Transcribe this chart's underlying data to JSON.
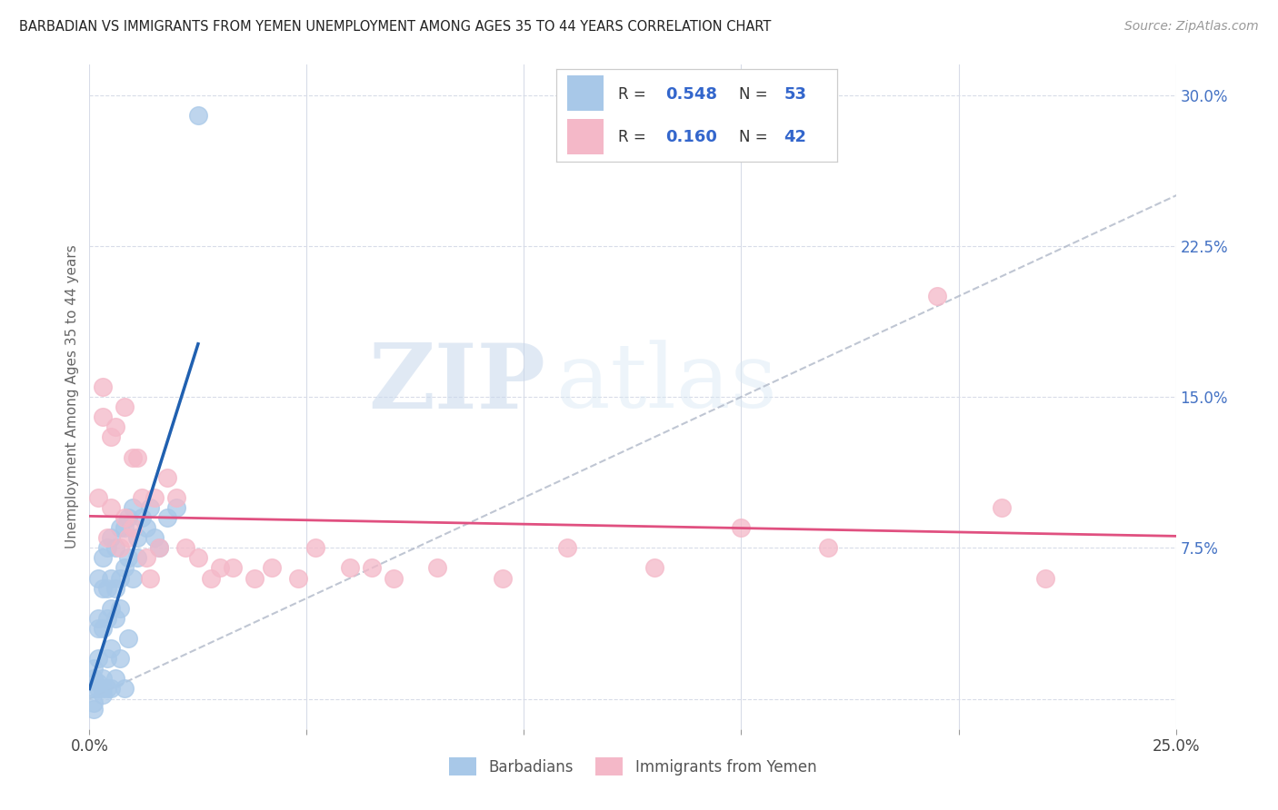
{
  "title": "BARBADIAN VS IMMIGRANTS FROM YEMEN UNEMPLOYMENT AMONG AGES 35 TO 44 YEARS CORRELATION CHART",
  "source": "Source: ZipAtlas.com",
  "ylabel": "Unemployment Among Ages 35 to 44 years",
  "xlim": [
    0.0,
    0.25
  ],
  "ylim": [
    -0.015,
    0.315
  ],
  "watermark_zip": "ZIP",
  "watermark_atlas": "atlas",
  "blue_color": "#a8c8e8",
  "pink_color": "#f4b8c8",
  "blue_line_color": "#2060b0",
  "pink_line_color": "#e05080",
  "diag_line_color": "#b0b8c8",
  "background_color": "#ffffff",
  "grid_color": "#d8dce8",
  "barbadians_x": [
    0.001,
    0.001,
    0.001,
    0.001,
    0.001,
    0.002,
    0.002,
    0.002,
    0.002,
    0.002,
    0.002,
    0.003,
    0.003,
    0.003,
    0.003,
    0.003,
    0.003,
    0.004,
    0.004,
    0.004,
    0.004,
    0.004,
    0.005,
    0.005,
    0.005,
    0.005,
    0.005,
    0.006,
    0.006,
    0.006,
    0.006,
    0.007,
    0.007,
    0.007,
    0.007,
    0.008,
    0.008,
    0.008,
    0.009,
    0.009,
    0.009,
    0.01,
    0.01,
    0.011,
    0.011,
    0.012,
    0.013,
    0.014,
    0.015,
    0.016,
    0.018,
    0.02,
    0.025
  ],
  "barbadians_y": [
    -0.005,
    -0.002,
    0.005,
    0.01,
    0.015,
    0.005,
    0.008,
    0.02,
    0.035,
    0.04,
    0.06,
    0.002,
    0.005,
    0.01,
    0.035,
    0.055,
    0.07,
    0.005,
    0.02,
    0.04,
    0.055,
    0.075,
    0.005,
    0.025,
    0.045,
    0.06,
    0.08,
    0.01,
    0.04,
    0.055,
    0.075,
    0.02,
    0.045,
    0.06,
    0.085,
    0.005,
    0.065,
    0.085,
    0.03,
    0.07,
    0.09,
    0.06,
    0.095,
    0.07,
    0.08,
    0.09,
    0.085,
    0.095,
    0.08,
    0.075,
    0.09,
    0.095,
    0.29
  ],
  "yemen_x": [
    0.002,
    0.003,
    0.003,
    0.004,
    0.005,
    0.005,
    0.006,
    0.007,
    0.008,
    0.008,
    0.009,
    0.01,
    0.01,
    0.011,
    0.012,
    0.013,
    0.014,
    0.015,
    0.016,
    0.018,
    0.02,
    0.022,
    0.025,
    0.028,
    0.03,
    0.033,
    0.038,
    0.042,
    0.048,
    0.052,
    0.06,
    0.065,
    0.07,
    0.08,
    0.095,
    0.11,
    0.13,
    0.15,
    0.17,
    0.195,
    0.21,
    0.22
  ],
  "yemen_y": [
    0.1,
    0.14,
    0.155,
    0.08,
    0.095,
    0.13,
    0.135,
    0.075,
    0.09,
    0.145,
    0.08,
    0.12,
    0.085,
    0.12,
    0.1,
    0.07,
    0.06,
    0.1,
    0.075,
    0.11,
    0.1,
    0.075,
    0.07,
    0.06,
    0.065,
    0.065,
    0.06,
    0.065,
    0.06,
    0.075,
    0.065,
    0.065,
    0.06,
    0.065,
    0.06,
    0.075,
    0.065,
    0.085,
    0.075,
    0.2,
    0.095,
    0.06
  ]
}
